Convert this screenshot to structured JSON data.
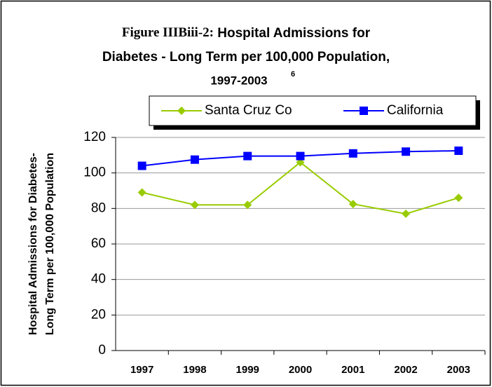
{
  "chart_data": {
    "type": "line",
    "title": {
      "label": "Figure IIIBiii-2:",
      "lines": [
        "Hospital Admissions for",
        "Diabetes - Long Term per 100,000 Population,",
        "1997-2003"
      ],
      "footnote": "6"
    },
    "y_label": [
      "Hospital Admissions for Diabetes-",
      "Long Term per 100,000 Population"
    ],
    "categories": [
      "1997",
      "1998",
      "1999",
      "2000",
      "2001",
      "2002",
      "2003"
    ],
    "series": [
      {
        "name": "Santa Cruz Co",
        "color": "#99cc00",
        "marker": "diamond",
        "values": [
          89,
          82,
          82,
          106,
          82.5,
          77,
          86
        ]
      },
      {
        "name": "California",
        "color": "#0000ff",
        "marker": "square",
        "values": [
          104,
          107.5,
          109.5,
          109.5,
          111,
          112,
          112.5
        ]
      }
    ],
    "ylim": [
      0,
      120
    ],
    "yticks": [
      0,
      20,
      40,
      60,
      80,
      100,
      120
    ],
    "grid": true
  }
}
